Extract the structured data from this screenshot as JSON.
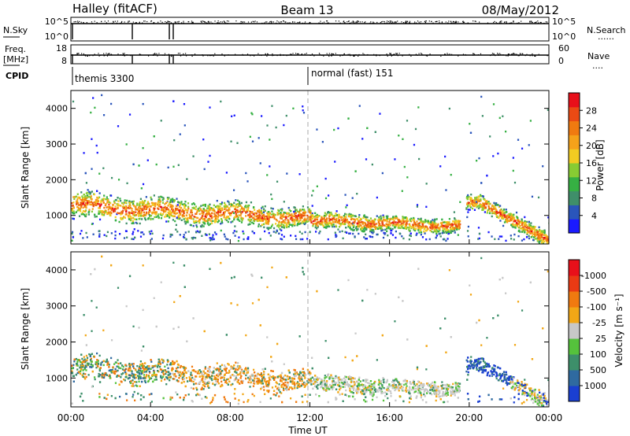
{
  "header": {
    "station": "Halley (fitACF)",
    "beam": "Beam 13",
    "date": "08/May/2012"
  },
  "strip_nsky": {
    "left_label": "N.Sky",
    "left_ticks": [
      "10^5",
      "10^0"
    ],
    "right_label": "N.Search",
    "right_ticks": [
      "10^5",
      "10^0"
    ],
    "right_legend": "......"
  },
  "strip_freq": {
    "left_label_1": "Freq.",
    "left_label_2": "[MHz]",
    "left_ticks": [
      "18",
      "8"
    ],
    "right_label": "Nave",
    "right_ticks": [
      "60",
      "0"
    ],
    "right_legend": "...."
  },
  "cpid": {
    "label": "CPID",
    "segments": [
      {
        "x": "00:00",
        "label": "themis 3300"
      },
      {
        "x": "12:00",
        "label": "normal (fast) 151"
      }
    ]
  },
  "chart_data": [
    {
      "type": "heatmap",
      "name": "power",
      "xlabel": "",
      "ylabel": "Slant Range [km]",
      "xlim": [
        0,
        24
      ],
      "ylim": [
        200,
        4500
      ],
      "yticks": [
        1000,
        2000,
        3000,
        4000
      ],
      "colorbar": {
        "label": "Power [dB]",
        "ticks": [
          "4",
          "8",
          "12",
          "16",
          "20",
          "24",
          "28"
        ],
        "colors": [
          "#1a1aff",
          "#2a55bb",
          "#3f8f6a",
          "#36b043",
          "#88cc33",
          "#f2cc22",
          "#f5a21a",
          "#f07a10",
          "#ea4a14",
          "#e8101a"
        ]
      }
    },
    {
      "type": "heatmap",
      "name": "velocity",
      "xlabel": "Time UT",
      "ylabel": "Slant Range [km]",
      "xlim": [
        0,
        24
      ],
      "ylim": [
        200,
        4500
      ],
      "yticks": [
        1000,
        2000,
        3000,
        4000
      ],
      "xtick_labels": [
        "00:00",
        "04:00",
        "08:00",
        "12:00",
        "16:00",
        "20:00",
        "00:00"
      ],
      "colorbar": {
        "label": "Velocity [m s⁻¹]",
        "ticks": [
          "1000",
          "500",
          "100",
          "25",
          "-25",
          "-100",
          "-500",
          "-1000"
        ],
        "colors": [
          "#1a3fd1",
          "#2f6aa0",
          "#3d8f6a",
          "#55c23c",
          "#c8c8c8",
          "#f2a716",
          "#f07a10",
          "#ea3a14",
          "#e8101a"
        ]
      }
    }
  ]
}
